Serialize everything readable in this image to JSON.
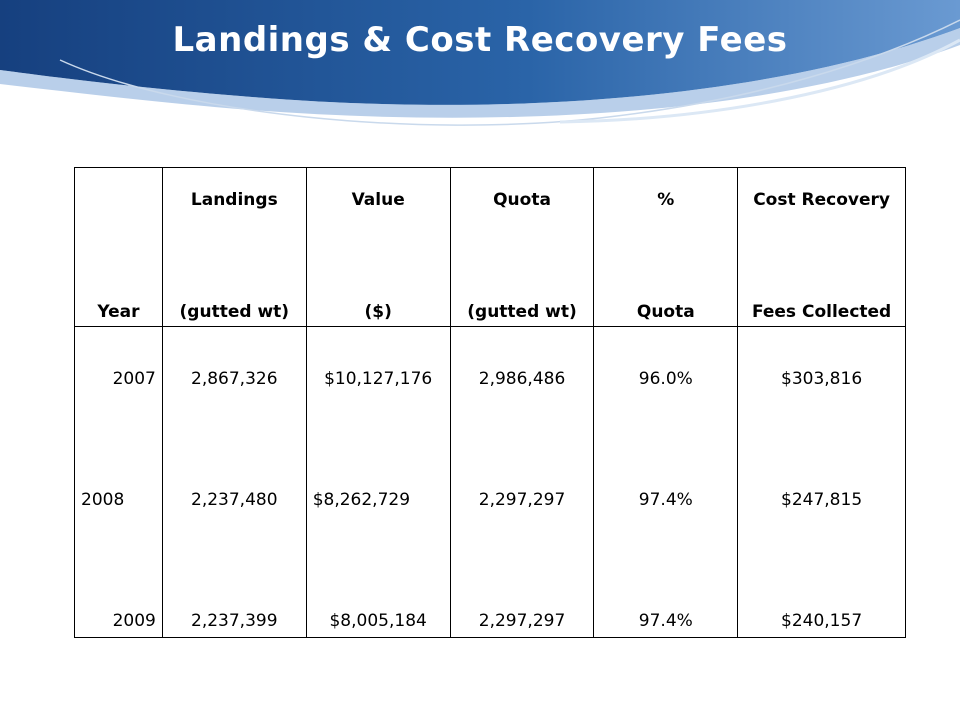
{
  "slide": {
    "title": "Landings & Cost Recovery Fees"
  },
  "colors": {
    "banner_dark": "#1b4a8c",
    "banner_light": "#4f86c6",
    "swoosh": "#cfe0f2"
  },
  "table": {
    "headers": [
      {
        "line1": "",
        "line2": "Year"
      },
      {
        "line1": "Landings",
        "line2": "(gutted wt)"
      },
      {
        "line1": "Value",
        "line2": "($)"
      },
      {
        "line1": "Quota",
        "line2": "(gutted wt)"
      },
      {
        "line1": "%",
        "line2": "Quota"
      },
      {
        "line1": "Cost Recovery",
        "line2": "Fees Collected"
      }
    ],
    "rows": [
      {
        "year": "2007",
        "landings": "2,867,326",
        "value": "$10,127,176",
        "quota": "2,986,486",
        "pct": "96.0%",
        "fees": "$303,816"
      },
      {
        "year": "2008",
        "landings": "2,237,480",
        "value": "$8,262,729",
        "quota": "2,297,297",
        "pct": "97.4%",
        "fees": "$247,815"
      },
      {
        "year": "2009",
        "landings": "2,237,399",
        "value": "$8,005,184",
        "quota": "2,297,297",
        "pct": "97.4%",
        "fees": "$240,157"
      }
    ]
  }
}
